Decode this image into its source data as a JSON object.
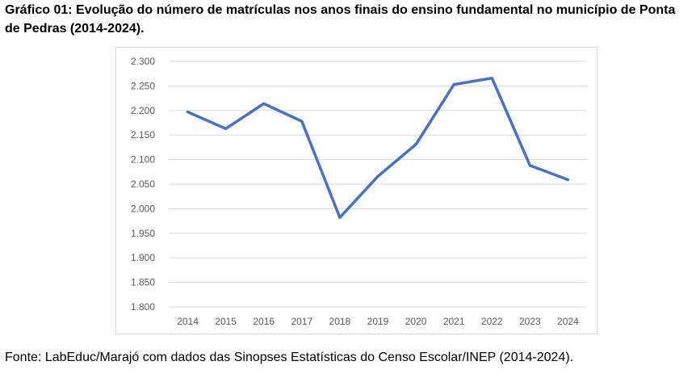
{
  "title": "Gráfico 01: Evolução do número de matrículas nos anos finais do ensino fundamental no município de Ponta de Pedras (2014-2024).",
  "source": "Fonte: LabEduc/Marajó com dados das Sinopses Estatísticas do Censo Escolar/INEP (2014-2024).",
  "colors": {
    "line": "#4472c4",
    "grid": "#d9d9d9",
    "tick_text": "#595959"
  },
  "chart_data": {
    "type": "line",
    "title": "",
    "xlabel": "",
    "ylabel": "",
    "categories": [
      "2014",
      "2015",
      "2016",
      "2017",
      "2018",
      "2019",
      "2020",
      "2021",
      "2022",
      "2023",
      "2024"
    ],
    "series": [
      {
        "name": "Matrículas",
        "values": [
          2197,
          2163,
          2214,
          2178,
          1982,
          2066,
          2131,
          2253,
          2266,
          2088,
          2059
        ]
      }
    ],
    "ylim": [
      1800,
      2300
    ],
    "ytick_values": [
      1800,
      1850,
      1900,
      1950,
      2000,
      2050,
      2100,
      2150,
      2200,
      2250,
      2300
    ],
    "ytick_labels": [
      "1.800",
      "1.850",
      "1.900",
      "1.950",
      "2.000",
      "2.050",
      "2.100",
      "2.150",
      "2.200",
      "2.250",
      "2.300"
    ],
    "grid": true,
    "legend": "none"
  }
}
